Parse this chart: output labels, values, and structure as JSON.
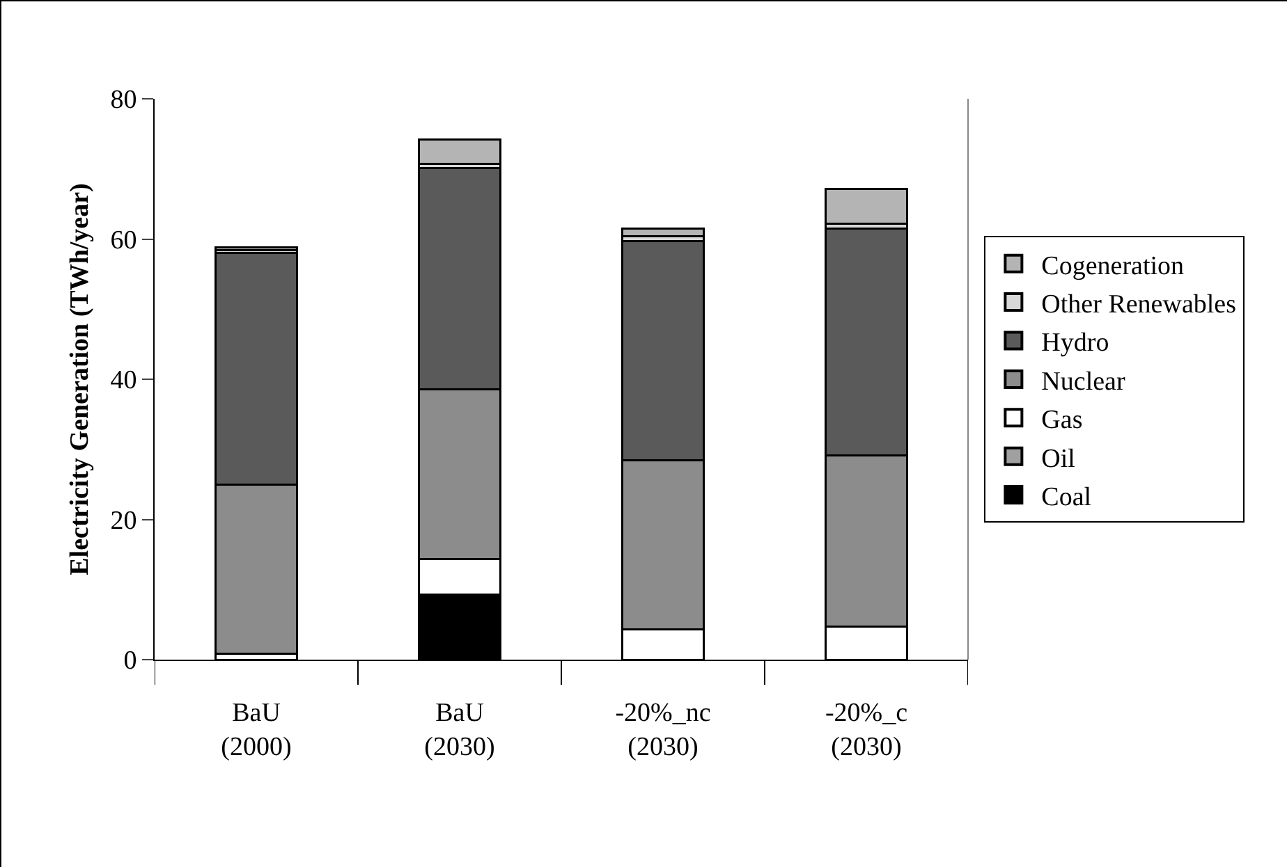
{
  "chart_data": {
    "type": "bar",
    "stacked": true,
    "ylabel": "Electricity Generation (TWh/year)",
    "categories": [
      "BaU\n(2000)",
      "BaU\n(2030)",
      "-20%_nc\n(2030)",
      "-20%_c\n(2030)"
    ],
    "series": [
      {
        "name": "Coal",
        "color": "#000000",
        "values": [
          0,
          9.3,
          0,
          0
        ]
      },
      {
        "name": "Oil",
        "color": "#a0a0a0",
        "values": [
          0,
          0,
          0,
          0
        ]
      },
      {
        "name": "Gas",
        "color": "#ffffff",
        "values": [
          0.8,
          5.0,
          4.3,
          4.7
        ]
      },
      {
        "name": "Nuclear",
        "color": "#8c8c8c",
        "values": [
          24.2,
          24.3,
          24.1,
          24.4
        ]
      },
      {
        "name": "Hydro",
        "color": "#5a5a5a",
        "values": [
          33.0,
          31.5,
          31.3,
          32.4
        ]
      },
      {
        "name": "Other Renewables",
        "color": "#d8d8d8",
        "values": [
          0.4,
          0.6,
          0.7,
          0.7
        ]
      },
      {
        "name": "Cogeneration",
        "color": "#b4b4b4",
        "values": [
          0.4,
          3.5,
          1.1,
          4.9
        ]
      }
    ],
    "ylim": [
      0,
      80
    ],
    "yticks": [
      0,
      20,
      40,
      60,
      80
    ],
    "grid": false,
    "legend": "right"
  }
}
